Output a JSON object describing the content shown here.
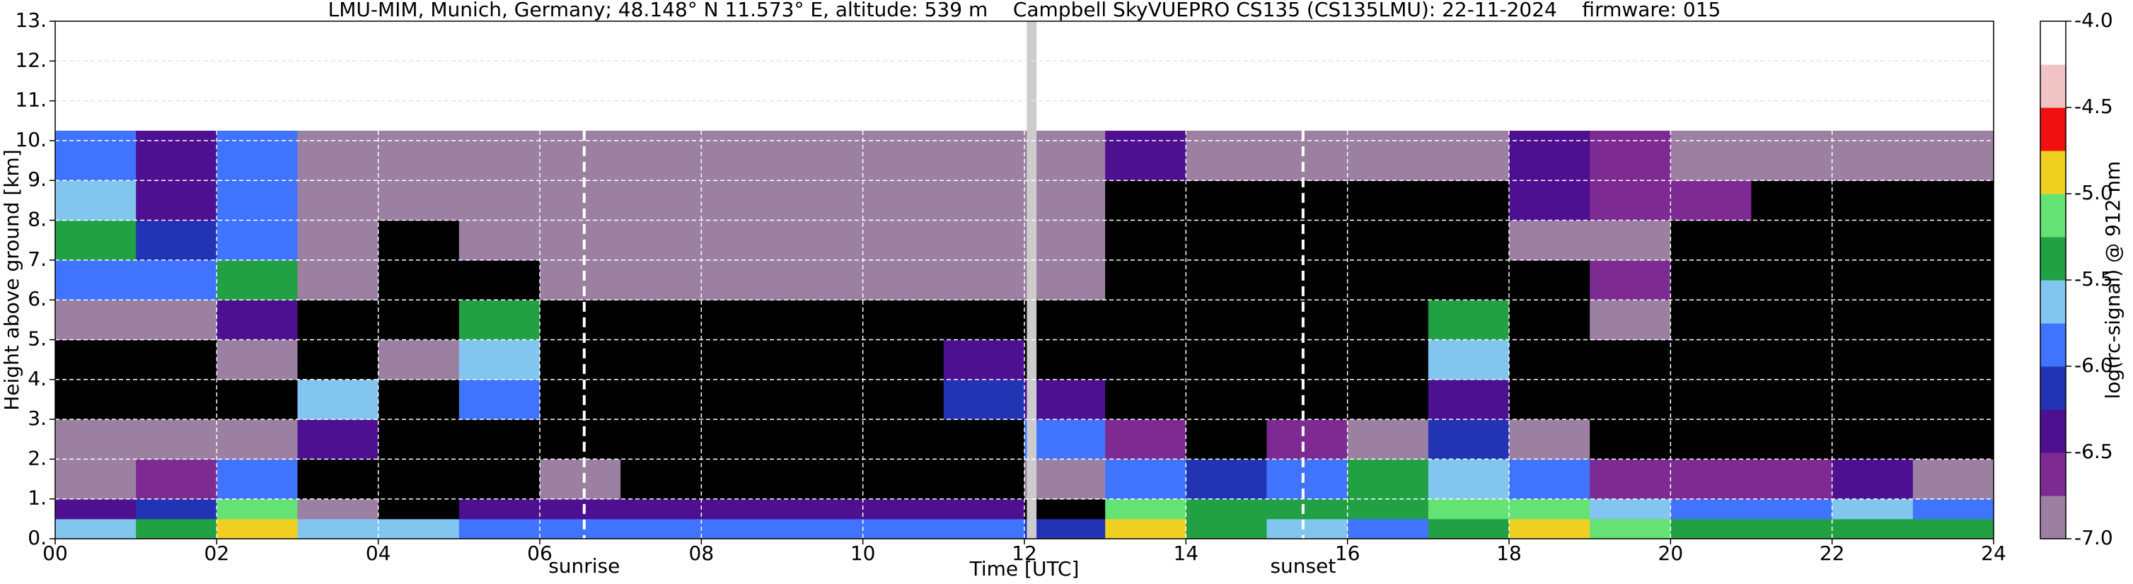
{
  "chart_data": {
    "type": "heatmap",
    "title": "LMU-MIM, Munich, Germany; 48.148° N 11.573° E, altitude: 539 m    Campbell SkyVUEPRO CS135 (CS135LMU): 22-11-2024    firmware: 015",
    "xlabel": "Time [UTC]",
    "ylabel": "Height above ground [km]",
    "colorbar_label": "log(rc-signal) @ 912 nm",
    "xlim": [
      0,
      24
    ],
    "ylim": [
      0,
      13
    ],
    "xticks": [
      {
        "value": 0,
        "label": "00"
      },
      {
        "value": 2,
        "label": "02"
      },
      {
        "value": 4,
        "label": "04"
      },
      {
        "value": 6,
        "label": "06"
      },
      {
        "value": 8,
        "label": "08"
      },
      10,
      12,
      14,
      16,
      18,
      20,
      22,
      24
    ],
    "yticks": [
      {
        "value": 0,
        "label": "0."
      },
      {
        "value": 1,
        "label": "1."
      },
      {
        "value": 2,
        "label": "2."
      },
      {
        "value": 3,
        "label": "3."
      },
      {
        "value": 4,
        "label": "4."
      },
      {
        "value": 5,
        "label": "5."
      },
      {
        "value": 6,
        "label": "6."
      },
      {
        "value": 7,
        "label": "7."
      },
      {
        "value": 8,
        "label": "8."
      },
      {
        "value": 9,
        "label": "9."
      },
      {
        "value": 10,
        "label": "10."
      },
      {
        "value": 11,
        "label": "11."
      },
      {
        "value": 12,
        "label": "12."
      },
      {
        "value": 13,
        "label": "13."
      }
    ],
    "clim": [
      -7,
      -4
    ],
    "cticks": [
      {
        "value": -7,
        "label": "-7.0"
      },
      -6.5,
      {
        "value": -6,
        "label": "-6.0"
      },
      -5.5,
      {
        "value": -5,
        "label": "-5.0"
      },
      -4.5,
      {
        "value": -4,
        "label": "-4.0"
      }
    ],
    "colors": [
      "#9c80a2",
      "#7d2a92",
      "#4c1090",
      "#2234b4",
      "#4074ff",
      "#82c6f0",
      "#22a044",
      "#64e274",
      "#f0d020",
      "#f01010",
      "#f0c4c4",
      "#ffffff"
    ],
    "below_color": "#000000",
    "grid": true,
    "annotations": [
      {
        "text": "sunrise",
        "x": 6.55
      },
      {
        "text": "sunset",
        "x": 15.45
      }
    ],
    "data_gap": [
      12.03,
      12.15
    ],
    "x_edges": [
      0,
      1,
      2,
      3,
      4,
      5,
      6,
      7,
      8,
      9,
      10,
      11,
      12,
      13,
      14,
      15,
      16,
      17,
      18,
      19,
      20,
      21,
      22,
      23,
      24
    ],
    "y_edges": [
      0,
      0.5,
      1,
      2,
      3,
      4,
      5,
      6,
      7,
      8,
      9,
      10.25
    ],
    "z": [
      [
        -5.6,
        -5.3,
        -4.9,
        -5.6,
        -5.7,
        -6.0,
        -6.0,
        -6.0,
        -6.0,
        -6.0,
        -6.0,
        -6.0,
        -6.2,
        -5.0,
        -5.4,
        -5.6,
        -5.8,
        -5.3,
        -5.0,
        -5.2,
        -5.4,
        -5.3,
        -5.4,
        -5.3
      ],
      [
        -6.4,
        -6.2,
        -5.2,
        -6.8,
        -7.2,
        -6.4,
        -6.5,
        -6.3,
        -6.3,
        -6.4,
        -6.4,
        -6.5,
        -7.2,
        -5.2,
        -5.3,
        -5.5,
        -5.4,
        -5.2,
        -5.2,
        -5.6,
        -6.0,
        -5.8,
        -5.6,
        -6.0
      ],
      [
        -6.8,
        -6.6,
        -5.8,
        -7.3,
        -7.4,
        -7.3,
        -6.9,
        -7.2,
        -7.2,
        -7.2,
        -7.2,
        -7.2,
        -7.0,
        -6.0,
        -6.2,
        -5.8,
        -5.3,
        -5.6,
        -5.8,
        -6.6,
        -6.7,
        -6.6,
        -6.3,
        -6.8
      ],
      [
        -6.9,
        -6.8,
        -7.0,
        -6.4,
        -7.4,
        -7.4,
        -7.2,
        -7.2,
        -7.2,
        -7.2,
        -7.2,
        -7.2,
        -5.8,
        -6.6,
        -7.3,
        -6.6,
        -6.8,
        -6.2,
        -6.9,
        -7.4,
        -7.3,
        -7.4,
        -7.4,
        -7.4
      ],
      [
        -7.3,
        -7.3,
        -7.2,
        -5.6,
        -7.3,
        -5.8,
        -7.2,
        -7.2,
        -7.2,
        -7.2,
        -7.2,
        -6.2,
        -6.5,
        -7.2,
        -7.4,
        -7.4,
        -7.4,
        -6.4,
        -7.4,
        -7.4,
        -7.4,
        -7.4,
        -7.4,
        -7.4
      ],
      [
        -7.3,
        -7.2,
        -7.0,
        -7.3,
        -6.9,
        -5.6,
        -7.1,
        -7.2,
        -7.2,
        -7.2,
        -7.2,
        -6.5,
        -7.1,
        -7.2,
        -7.4,
        -7.4,
        -7.4,
        -5.6,
        -7.4,
        -7.4,
        -7.4,
        -7.4,
        -7.4,
        -7.4
      ],
      [
        -6.8,
        -6.9,
        -6.3,
        -7.2,
        -7.2,
        -5.4,
        -7.2,
        -7.2,
        -7.2,
        -7.2,
        -7.2,
        -7.2,
        -7.2,
        -7.2,
        -7.4,
        -7.4,
        -7.4,
        -5.5,
        -7.3,
        -6.8,
        -7.4,
        -7.4,
        -7.4,
        -7.4
      ],
      [
        -5.9,
        -6.0,
        -5.5,
        -7.0,
        -7.1,
        -7.2,
        -7.0,
        -7.0,
        -7.0,
        -7.0,
        -7.0,
        -7.0,
        -7.0,
        -7.3,
        -7.3,
        -7.3,
        -7.3,
        -7.3,
        -7.2,
        -6.6,
        -7.3,
        -7.3,
        -7.3,
        -7.3
      ],
      [
        -5.5,
        -6.1,
        -5.9,
        -7.0,
        -7.1,
        -7.0,
        -7.0,
        -7.0,
        -7.0,
        -7.0,
        -7.0,
        -7.0,
        -7.0,
        -7.3,
        -7.3,
        -7.3,
        -7.3,
        -7.3,
        -6.8,
        -6.9,
        -7.1,
        -7.3,
        -7.3,
        -7.3
      ],
      [
        -5.6,
        -6.3,
        -5.8,
        -7.0,
        -6.9,
        -7.0,
        -7.0,
        -7.0,
        -7.0,
        -7.0,
        -7.0,
        -7.0,
        -7.0,
        -7.2,
        -7.2,
        -7.2,
        -7.2,
        -7.2,
        -6.3,
        -6.7,
        -6.6,
        -7.2,
        -7.2,
        -7.2
      ],
      [
        -6.0,
        -6.5,
        -6.0,
        -6.8,
        -7.0,
        -6.9,
        -6.9,
        -6.9,
        -6.9,
        -6.9,
        -6.9,
        -6.9,
        -6.9,
        -6.4,
        -7.0,
        -7.0,
        -7.0,
        -7.0,
        -6.5,
        -6.6,
        -6.8,
        -6.9,
        -6.9,
        -6.9
      ]
    ]
  }
}
